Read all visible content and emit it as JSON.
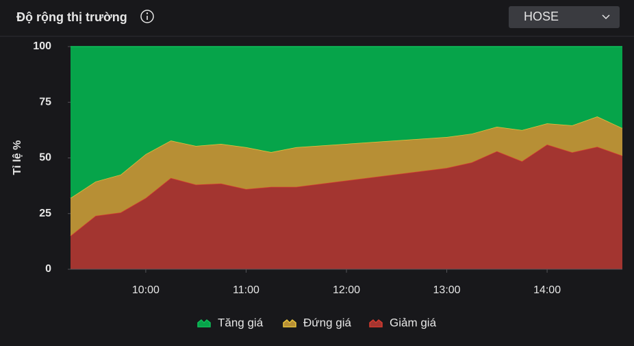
{
  "header": {
    "title": "Độ rộng thị trường",
    "selector": "HOSE"
  },
  "chart_data": {
    "type": "area",
    "stacked": true,
    "y_label": "Tỉ lệ %",
    "x": [
      "09:15",
      "09:30",
      "09:45",
      "10:00",
      "10:15",
      "10:30",
      "10:45",
      "11:00",
      "11:15",
      "11:30",
      "13:00",
      "13:15",
      "13:30",
      "13:45",
      "14:00",
      "14:15",
      "14:30",
      "14:45"
    ],
    "xlim": [
      "09:15",
      "14:45"
    ],
    "xticks": [
      "10:00",
      "11:00",
      "12:00",
      "13:00",
      "14:00"
    ],
    "ylim": [
      0,
      100
    ],
    "yticks": [
      0,
      25,
      50,
      75,
      100
    ],
    "series": [
      {
        "name": "Tăng giá",
        "color": "#06a44a",
        "line_color": "#0fbf5a",
        "values": [
          68,
          60.6,
          57.5,
          48.3,
          42.2,
          44.6,
          43.7,
          45.2,
          47.4,
          45.2,
          40.6,
          39.1,
          36,
          37.5,
          34.5,
          35.4,
          31.4,
          36.6
        ]
      },
      {
        "name": "Đứng giá",
        "color": "#b78f35",
        "line_color": "#e8c33c",
        "values": [
          17,
          15.4,
          17,
          19.7,
          16.8,
          17.4,
          17.8,
          18.8,
          15.6,
          17.8,
          13.9,
          12.9,
          11,
          14,
          9.5,
          12.1,
          13.6,
          12.4
        ]
      },
      {
        "name": "Giảm giá",
        "color": "#a33530",
        "line_color": "#d53a2f",
        "values": [
          15,
          24,
          25.5,
          32,
          41,
          38,
          38.5,
          36,
          37,
          37,
          45.5,
          48,
          53,
          48.5,
          56,
          52.5,
          55,
          51
        ]
      }
    ]
  }
}
